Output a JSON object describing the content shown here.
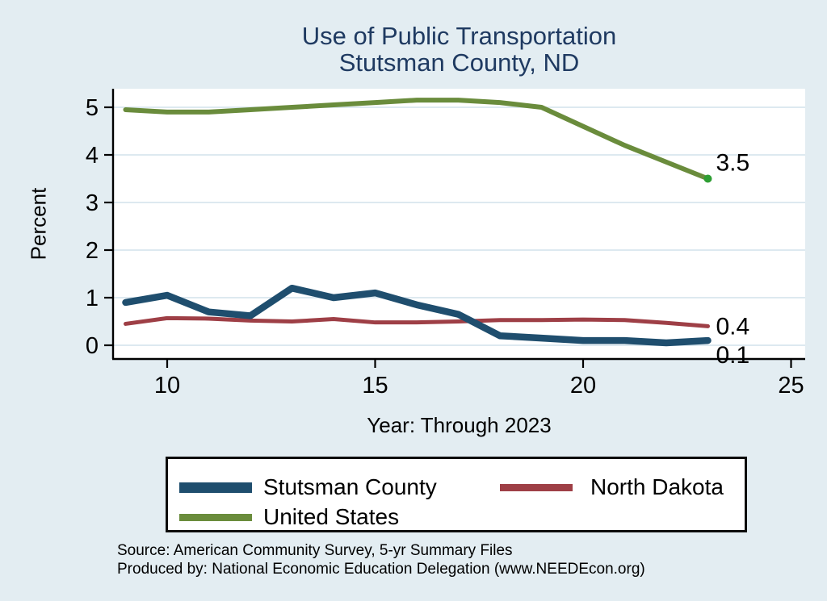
{
  "title": {
    "line1": "Use of Public Transportation",
    "line2": "Stutsman County, ND"
  },
  "chart_data": {
    "type": "line",
    "x": [
      2009,
      2010,
      2011,
      2012,
      2013,
      2014,
      2015,
      2016,
      2017,
      2018,
      2019,
      2020,
      2021,
      2022,
      2023
    ],
    "series": [
      {
        "name": "Stutsman County",
        "color": "#1f4e6e",
        "line_width": 8.5,
        "values": [
          0.9,
          1.05,
          0.7,
          0.62,
          1.2,
          1.0,
          1.1,
          0.85,
          0.65,
          0.2,
          0.15,
          0.1,
          0.1,
          0.05,
          0.1
        ],
        "end_label": "0.1"
      },
      {
        "name": "North Dakota",
        "color": "#9e3f46",
        "line_width": 5,
        "values": [
          0.45,
          0.57,
          0.56,
          0.52,
          0.5,
          0.55,
          0.48,
          0.48,
          0.5,
          0.53,
          0.53,
          0.54,
          0.53,
          0.47,
          0.4
        ],
        "end_label": "0.4"
      },
      {
        "name": "United States",
        "color": "#6a8c3c",
        "line_width": 6,
        "values": [
          4.95,
          4.9,
          4.9,
          4.95,
          5.0,
          5.05,
          5.1,
          5.15,
          5.15,
          5.1,
          5.0,
          4.6,
          4.2,
          3.85,
          3.5
        ],
        "end_label": "3.5",
        "end_marker_color": "#2e9e33"
      }
    ],
    "title": "Use of Public Transportation Stutsman County, ND",
    "xlabel": "Year: Through 2023",
    "ylabel": "Percent",
    "y_ticks": [
      0,
      1,
      2,
      3,
      4,
      5
    ],
    "x_ticks": [
      10,
      15,
      20,
      25
    ],
    "ylim": [
      0,
      5.3
    ],
    "grid": "horizontal",
    "legend_position": "bottom"
  },
  "colors": {
    "page_background": "#e3edf2",
    "plot_background": "#ffffff",
    "gridline": "#dde9f0",
    "axis": "#000000",
    "title_text": "#1f3a61"
  },
  "source": {
    "line1": "Source: American Community Survey, 5-yr Summary Files",
    "line2": "Produced by: National Economic Education Delegation (www.NEEDEcon.org)"
  }
}
